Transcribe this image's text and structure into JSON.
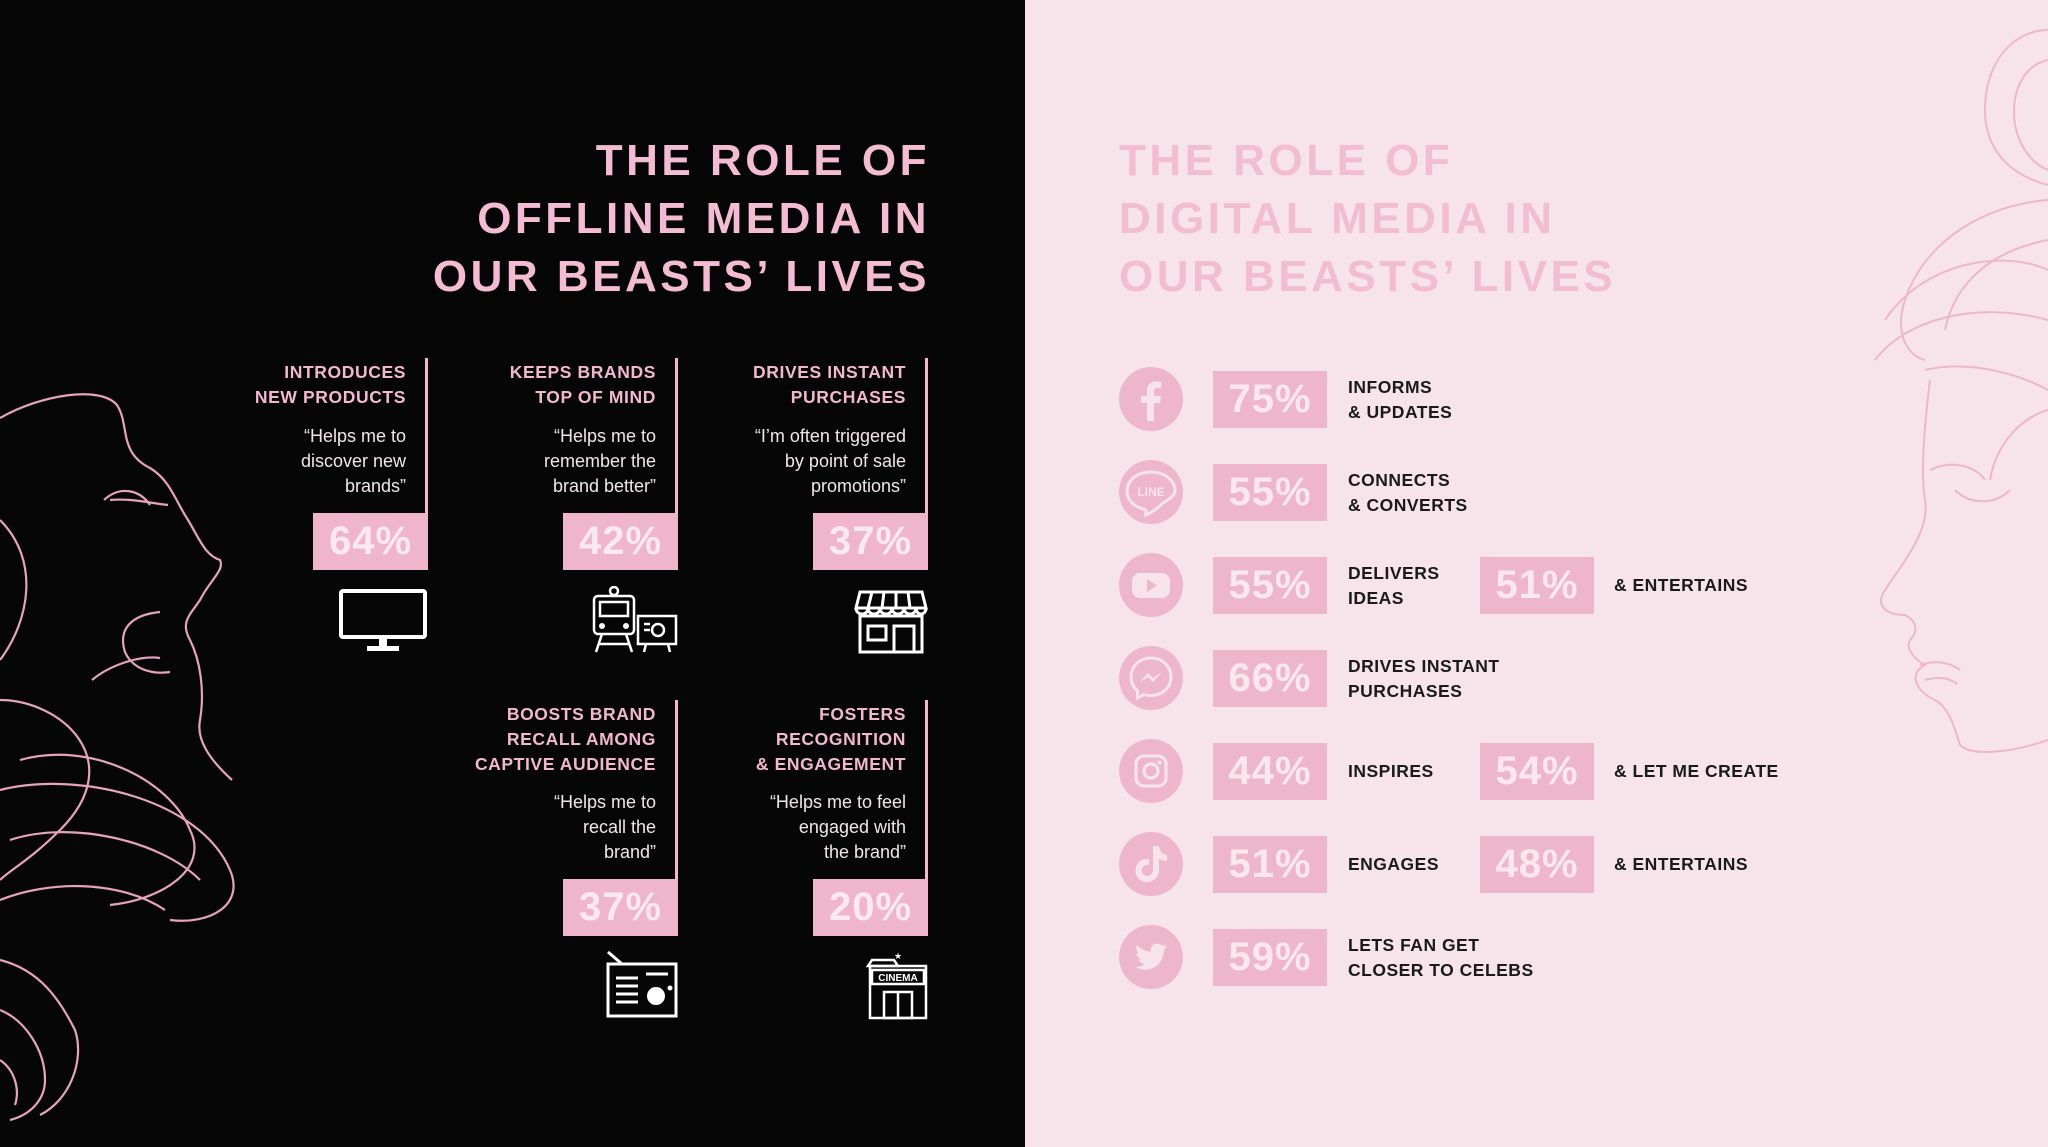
{
  "offline": {
    "title_lines": [
      "THE ROLE OF",
      "OFFLINE MEDIA IN",
      "OUR BEASTS’ LIVES"
    ],
    "cards": [
      {
        "heading_lines": [
          "INTRODUCES",
          "NEW PRODUCTS"
        ],
        "quote_lines": [
          "“Helps me to",
          "discover new",
          "brands”"
        ],
        "percent": "64%",
        "icon": "tv-icon"
      },
      {
        "heading_lines": [
          "KEEPS BRANDS",
          "TOP OF MIND"
        ],
        "quote_lines": [
          "“Helps me to",
          "remember the",
          "brand better”"
        ],
        "percent": "42%",
        "icon": "transit-billboard-icon"
      },
      {
        "heading_lines": [
          "DRIVES INSTANT",
          "PURCHASES"
        ],
        "quote_lines": [
          "“I’m often triggered",
          "by point of sale",
          "promotions”"
        ],
        "percent": "37%",
        "icon": "storefront-icon"
      },
      {
        "heading_lines": [
          "BOOSTS BRAND",
          "RECALL AMONG",
          "CAPTIVE AUDIENCE"
        ],
        "quote_lines": [
          "“Helps me to",
          "recall the",
          "brand”"
        ],
        "percent": "37%",
        "icon": "radio-icon"
      },
      {
        "heading_lines": [
          "FOSTERS",
          "RECOGNITION",
          "& ENGAGEMENT"
        ],
        "quote_lines": [
          "“Helps me to feel",
          "engaged with",
          "the brand”"
        ],
        "percent": "20%",
        "icon": "cinema-icon",
        "icon_text": "CINEMA"
      }
    ]
  },
  "digital": {
    "title_lines": [
      "THE ROLE OF",
      "DIGITAL MEDIA IN",
      "OUR BEASTS’ LIVES"
    ],
    "rows": [
      {
        "platform_icon": "facebook-icon",
        "percent": "75%",
        "label_lines": [
          "INFORMS",
          "& UPDATES"
        ]
      },
      {
        "platform_icon": "line-icon",
        "icon_text": "LINE",
        "percent": "55%",
        "label_lines": [
          "CONNECTS",
          "& CONVERTS"
        ]
      },
      {
        "platform_icon": "youtube-icon",
        "percent": "55%",
        "label_lines": [
          "DELIVERS",
          "IDEAS"
        ],
        "percent2": "51%",
        "label2": "& ENTERTAINS"
      },
      {
        "platform_icon": "messenger-icon",
        "percent": "66%",
        "label_lines": [
          "DRIVES INSTANT",
          "PURCHASES"
        ]
      },
      {
        "platform_icon": "instagram-icon",
        "percent": "44%",
        "label_lines": [
          "INSPIRES"
        ],
        "percent2": "54%",
        "label2": "& LET ME CREATE"
      },
      {
        "platform_icon": "tiktok-icon",
        "percent": "51%",
        "label_lines": [
          "ENGAGES"
        ],
        "percent2": "48%",
        "label2": "& ENTERTAINS"
      },
      {
        "platform_icon": "twitter-icon",
        "percent": "59%",
        "label_lines": [
          "LETS FAN GET",
          "CLOSER TO CELEBS"
        ]
      }
    ]
  },
  "colors": {
    "left_background": "#060606",
    "right_background": "#f6e4ea",
    "accent_pink": "#eeb5cb",
    "offline_title": "#f4bcd3",
    "digital_title": "#f2bdd1",
    "digital_label": "#1a1a1a"
  }
}
